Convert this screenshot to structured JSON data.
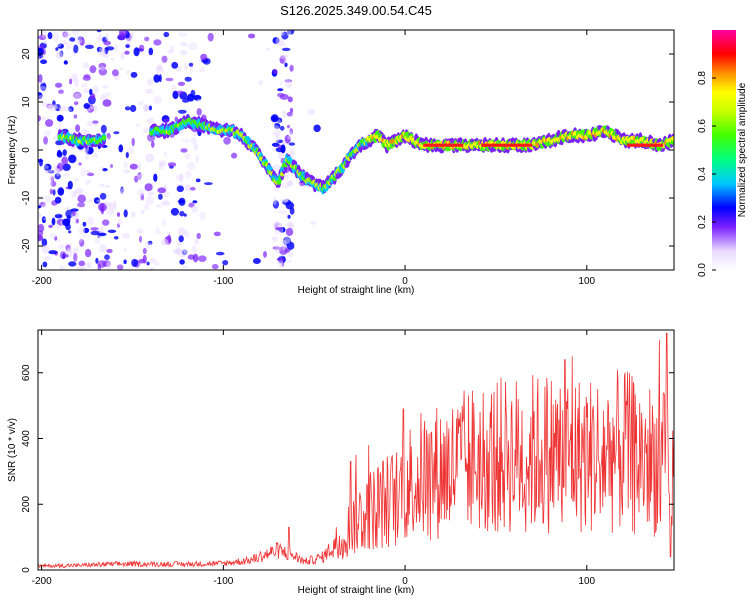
{
  "title": "S126.2025.349.00.54.C45",
  "chart_data": [
    {
      "type": "heatmap",
      "name": "spectrogram",
      "xlabel": "Height of straight line (km)",
      "ylabel": "Frequency (Hz)",
      "xlim": [
        -202,
        148
      ],
      "ylim": [
        -25,
        25
      ],
      "x_ticks": [
        -200,
        -100,
        0,
        100
      ],
      "x_tick_labels": [
        "-200",
        "-100",
        "0",
        "100"
      ],
      "y_ticks": [
        -20,
        -10,
        0,
        10,
        20
      ],
      "y_tick_labels": [
        "-20",
        "-10",
        "0",
        "10",
        "20"
      ],
      "ridge": {
        "x": [
          -190,
          -180,
          -170,
          -140,
          -130,
          -120,
          -110,
          -100,
          -95,
          -90,
          -85,
          -80,
          -75,
          -70,
          -65,
          -60,
          -55,
          -50,
          -45,
          -40,
          -35,
          -30,
          -25,
          -20,
          -15,
          -10,
          -5,
          0,
          5,
          10,
          20,
          30,
          40,
          50,
          60,
          70,
          80,
          90,
          100,
          110,
          120,
          130,
          140,
          148
        ],
        "y": [
          3,
          2,
          2,
          4,
          4,
          6,
          5,
          4,
          4,
          3,
          1,
          -1,
          -4,
          -7,
          -2,
          -4,
          -6,
          -7,
          -8,
          -6,
          -4,
          -1,
          1,
          2,
          3,
          1,
          2,
          3,
          2,
          1,
          1,
          1,
          1,
          1,
          1,
          1,
          2,
          3,
          3,
          4,
          2,
          2,
          1,
          2
        ]
      },
      "colorbar": {
        "label": "Normalized spectral amplitude",
        "ticks": [
          0.0,
          0.2,
          0.4,
          0.6,
          0.8
        ],
        "tick_labels": [
          "0.0",
          "0.2",
          "0.4",
          "0.6",
          "0.8"
        ],
        "range": [
          0,
          1
        ]
      }
    },
    {
      "type": "line",
      "name": "snr",
      "xlabel": "Height of straight line (km)",
      "ylabel": "SNR (10 * v/v)",
      "xlim": [
        -202,
        148
      ],
      "ylim": [
        0,
        730
      ],
      "x_ticks": [
        -200,
        -100,
        0,
        100
      ],
      "x_tick_labels": [
        "-200",
        "-100",
        "0",
        "100"
      ],
      "y_ticks": [
        0,
        200,
        400,
        600
      ],
      "y_tick_labels": [
        "0",
        "200",
        "400",
        "600"
      ],
      "line_color": "#ee3333",
      "envelope": {
        "x": [
          -202,
          -180,
          -160,
          -120,
          -100,
          -85,
          -70,
          -62,
          -55,
          -45,
          -35,
          -25,
          -15,
          -5,
          0,
          10,
          25,
          40,
          60,
          80,
          100,
          120,
          140,
          148
        ],
        "y": [
          12,
          14,
          18,
          18,
          20,
          30,
          60,
          45,
          25,
          40,
          100,
          160,
          200,
          220,
          260,
          290,
          310,
          340,
          350,
          360,
          350,
          360,
          330,
          300
        ]
      },
      "peaks": [
        {
          "x": -64,
          "y": 130
        },
        {
          "x": -30,
          "y": 330
        },
        {
          "x": -27,
          "y": 350
        },
        {
          "x": -20,
          "y": 380
        },
        {
          "x": -1,
          "y": 490
        },
        {
          "x": 56,
          "y": 450
        },
        {
          "x": 88,
          "y": 640
        },
        {
          "x": 92,
          "y": 650
        },
        {
          "x": 121,
          "y": 600
        },
        {
          "x": 126,
          "y": 560
        },
        {
          "x": 140,
          "y": 700
        },
        {
          "x": 144,
          "y": 720
        },
        {
          "x": 146,
          "y": 40
        }
      ]
    }
  ]
}
